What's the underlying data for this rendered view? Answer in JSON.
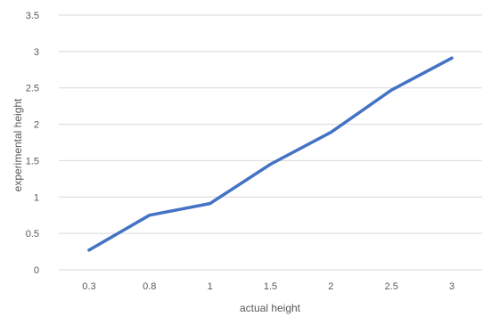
{
  "chart_data": {
    "type": "line",
    "categories": [
      "0.3",
      "0.8",
      "1",
      "1.5",
      "2",
      "2.5",
      "3"
    ],
    "series": [
      {
        "values": [
          0.27,
          0.75,
          0.91,
          1.45,
          1.89,
          2.47,
          2.91
        ]
      }
    ],
    "xlabel": "actual height",
    "ylabel": "experimental height",
    "ylim": [
      0,
      3.5
    ],
    "yticks": [
      "0",
      "0.5",
      "1",
      "1.5",
      "2",
      "2.5",
      "3",
      "3.5"
    ],
    "grid": true,
    "legend": "none",
    "colors": {
      "line": "#4472C4",
      "grid": "#D9D9D9",
      "text": "#595959"
    }
  }
}
